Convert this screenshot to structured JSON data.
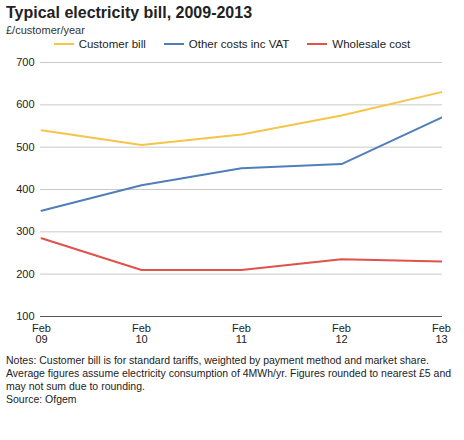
{
  "chart_data": {
    "type": "line",
    "title": "Typical electricity bill, 2009-2013",
    "subtitle": "£/customer/year",
    "categories": [
      "Feb\n09",
      "Feb\n10",
      "Feb\n11",
      "Feb\n12",
      "Feb\n13"
    ],
    "series": [
      {
        "name": "Customer bill",
        "color": "#f5c54a",
        "values": [
          540,
          505,
          530,
          575,
          630
        ]
      },
      {
        "name": "Other costs inc VAT",
        "color": "#4f7fb8",
        "values": [
          350,
          410,
          450,
          460,
          570
        ]
      },
      {
        "name": "Wholesale cost",
        "color": "#e0524a",
        "values": [
          285,
          210,
          210,
          235,
          230
        ]
      }
    ],
    "ylim": [
      100,
      700
    ],
    "yticks": [
      100,
      200,
      300,
      400,
      500,
      600,
      700
    ],
    "grid": true,
    "legend": "top",
    "notes": "Notes: Customer bill is for standard tariffs, weighted by payment method and market share. Average figures assume electricity consumption of 4MWh/yr. Figures rounded to nearest £5 and may not sum due to rounding.",
    "source": "Source: Ofgem"
  }
}
